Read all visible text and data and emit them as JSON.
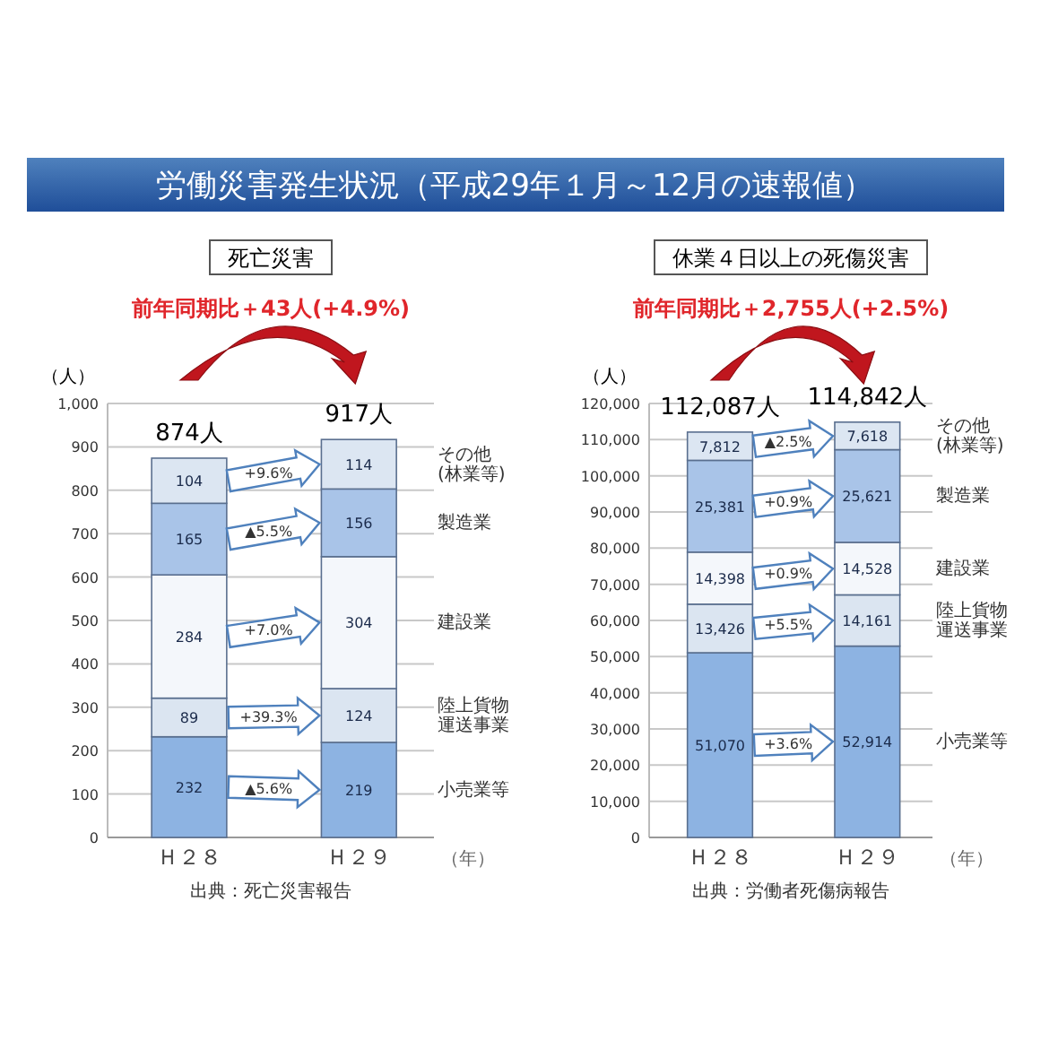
{
  "chart_data": [
    {
      "type": "other",
      "title": "労働災害発生状況（平成29年１月～12月の速報値）"
    },
    {
      "type": "bar",
      "title": "死亡災害",
      "subtitle": "前年同期比＋43人(+4.9%)",
      "categories": [
        "Ｈ２８",
        "Ｈ２９"
      ],
      "stacked": true,
      "data_labels": true,
      "grid": "y",
      "totals": [
        "874人",
        "917人"
      ],
      "ylabel": "（人）",
      "xlabel": "（年）",
      "ylim": [
        0,
        1000
      ],
      "yticks": [
        0,
        100,
        200,
        300,
        400,
        500,
        600,
        700,
        800,
        900,
        {
          "value": 1000,
          "label": "1,000"
        }
      ],
      "series": [
        {
          "name": "小売業等",
          "color": "#8db3e2",
          "values": [
            232,
            219
          ]
        },
        {
          "name": "陸上貨物運送事業",
          "color": "#dbe5f1",
          "values": [
            89,
            124
          ]
        },
        {
          "name": "建設業",
          "color": "#f4f7fb",
          "values": [
            284,
            304
          ]
        },
        {
          "name": "製造業",
          "color": "#a9c4e8",
          "values": [
            165,
            156
          ]
        },
        {
          "name": "その他(林業等)",
          "color": "#dce6f2",
          "values": [
            104,
            114
          ]
        }
      ],
      "annotations": [
        "▲5.6%",
        "+39.3%",
        "+7.0%",
        "▲5.5%",
        "+9.6%",
        "出典：死亡災害報告"
      ]
    },
    {
      "type": "bar",
      "title": "休業４日以上の死傷災害",
      "subtitle": "前年同期比＋2,755人(+2.5%)",
      "categories": [
        "Ｈ２８",
        "Ｈ２９"
      ],
      "stacked": true,
      "grid": "y",
      "totals": [
        "112,087人",
        "114,842人"
      ],
      "ylabel": "（人）",
      "xlabel": "（年）",
      "ylim": [
        0,
        120000
      ],
      "yticks": [
        0,
        {
          "value": 10000,
          "label": "10,000"
        },
        {
          "value": 20000,
          "label": "20,000"
        },
        {
          "value": 30000,
          "label": "30,000"
        },
        {
          "value": 40000,
          "label": "40,000"
        },
        {
          "value": 50000,
          "label": "50,000"
        },
        {
          "value": 60000,
          "label": "60,000"
        },
        {
          "value": 70000,
          "label": "70,000"
        },
        {
          "value": 80000,
          "label": "80,000"
        },
        {
          "value": 90000,
          "label": "90,000"
        },
        {
          "value": 100000,
          "label": "100,000"
        },
        {
          "value": 110000,
          "label": "110,000"
        },
        {
          "value": 120000,
          "label": "120,000"
        }
      ],
      "series": [
        {
          "name": "小売業等",
          "color": "#8db3e2",
          "values": [
            51070,
            52914
          ],
          "value_labels": [
            "51,070",
            "52,914"
          ]
        },
        {
          "name": "陸上貨物運送事業",
          "color": "#dbe5f1",
          "values": [
            13426,
            14161
          ],
          "value_labels": [
            "13,426",
            "14,161"
          ]
        },
        {
          "name": "建設業",
          "color": "#f4f7fb",
          "values": [
            14398,
            14528
          ],
          "value_labels": [
            "14,398",
            "14,528"
          ]
        },
        {
          "name": "製造業",
          "color": "#a9c4e8",
          "values": [
            25381,
            25621
          ],
          "value_labels": [
            "25,381",
            "25,621"
          ]
        },
        {
          "name": "その他(林業等)",
          "color": "#dce6f2",
          "values": [
            7812,
            7618
          ],
          "value_labels": [
            "7,812",
            "7,618"
          ]
        }
      ],
      "annotations": [
        "+3.6%",
        "+5.5%",
        "+0.9%",
        "+0.9%",
        "▲2.5%",
        "出典：労働者死傷病報告"
      ]
    }
  ]
}
